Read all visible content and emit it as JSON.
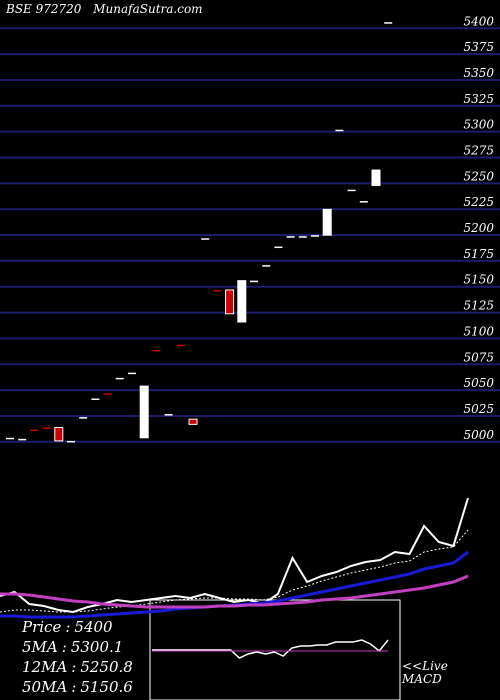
{
  "header": {
    "exchange": "BSE 972720",
    "site": "MunafaSutra.com"
  },
  "legend": {
    "price_label": "Price",
    "price_value": "5400",
    "ma5_label": "5MA",
    "ma5_value": "5300.1",
    "ma12_label": "12MA",
    "ma12_value": "5250.8",
    "ma50_label": "50MA",
    "ma50_value": "5150.6"
  },
  "macd_label": {
    "line1": "<<Live",
    "line2": "MACD"
  },
  "colors": {
    "background": "#000000",
    "grid": "#1c1c6e",
    "up": "#ffffff",
    "down": "#cc0000",
    "ma_fast": "#ffffff",
    "ma_mid": "#1a1ad6",
    "ma_slow": "#c040c0"
  },
  "chart_data": [
    {
      "type": "candlestick",
      "title": "",
      "ylim": [
        4994,
        5408
      ],
      "y_ticks": [
        5400,
        5375,
        5350,
        5325,
        5300,
        5275,
        5250,
        5225,
        5200,
        5175,
        5150,
        5125,
        5100,
        5075,
        5050,
        5025,
        5000
      ],
      "candles": [
        {
          "o": 5000,
          "c": 5000,
          "dir": "up"
        },
        {
          "o": 4999,
          "c": 4999,
          "dir": "up"
        },
        {
          "o": 5008,
          "c": 5008,
          "dir": "down"
        },
        {
          "o": 5010,
          "c": 5010,
          "dir": "down"
        },
        {
          "o": 5010,
          "c": 4997,
          "dir": "down"
        },
        {
          "o": 4997,
          "c": 4997,
          "dir": "up"
        },
        {
          "o": 5020,
          "c": 5020,
          "dir": "up"
        },
        {
          "o": 5038,
          "c": 5038,
          "dir": "up"
        },
        {
          "o": 5043,
          "c": 5043,
          "dir": "down"
        },
        {
          "o": 5058,
          "c": 5058,
          "dir": "up"
        },
        {
          "o": 5063,
          "c": 5063,
          "dir": "up"
        },
        {
          "o": 5000,
          "c": 5050,
          "dir": "up"
        },
        {
          "o": 5085,
          "c": 5085,
          "dir": "down"
        },
        {
          "o": 5023,
          "c": 5023,
          "dir": "up"
        },
        {
          "o": 5090,
          "c": 5090,
          "dir": "down"
        },
        {
          "o": 5018,
          "c": 5013,
          "dir": "down"
        },
        {
          "o": 5193,
          "c": 5193,
          "dir": "up"
        },
        {
          "o": 5143,
          "c": 5143,
          "dir": "down"
        },
        {
          "o": 5143,
          "c": 5120,
          "dir": "down"
        },
        {
          "o": 5112,
          "c": 5152,
          "dir": "up"
        },
        {
          "o": 5152,
          "c": 5152,
          "dir": "up"
        },
        {
          "o": 5167,
          "c": 5167,
          "dir": "up"
        },
        {
          "o": 5185,
          "c": 5185,
          "dir": "up"
        },
        {
          "o": 5195,
          "c": 5195,
          "dir": "up"
        },
        {
          "o": 5195,
          "c": 5195,
          "dir": "up"
        },
        {
          "o": 5196,
          "c": 5196,
          "dir": "up"
        },
        {
          "o": 5196,
          "c": 5221,
          "dir": "up"
        },
        {
          "o": 5298,
          "c": 5298,
          "dir": "up"
        },
        {
          "o": 5240,
          "c": 5240,
          "dir": "up"
        },
        {
          "o": 5229,
          "c": 5229,
          "dir": "up"
        },
        {
          "o": 5244,
          "c": 5259,
          "dir": "up"
        },
        {
          "o": 5402,
          "c": 5402,
          "dir": "up"
        }
      ]
    },
    {
      "type": "line",
      "title": "",
      "series": [
        {
          "role": "price",
          "values": [
            596,
            592,
            604,
            606,
            610,
            612,
            607,
            604,
            600,
            602,
            600,
            598,
            596,
            598,
            594,
            598,
            602,
            600,
            604,
            594,
            558,
            582,
            576,
            572,
            566,
            562,
            560,
            552,
            554,
            526,
            542,
            546,
            498
          ]
        },
        {
          "role": "ma_fast",
          "values": [
            612,
            610,
            610,
            611,
            612,
            612,
            611,
            609,
            607,
            606,
            604,
            602,
            600,
            599,
            598,
            598,
            599,
            599,
            600,
            597,
            590,
            586,
            581,
            577,
            573,
            570,
            567,
            563,
            561,
            552,
            549,
            547,
            530
          ]
        },
        {
          "role": "ma_mid",
          "values": [
            616,
            616,
            617,
            617,
            617,
            617,
            616,
            615,
            614,
            613,
            612,
            611,
            609,
            608,
            607,
            606,
            605,
            604,
            603,
            601,
            598,
            595,
            592,
            589,
            586,
            583,
            580,
            577,
            574,
            569,
            566,
            563,
            552
          ]
        },
        {
          "role": "ma_slow",
          "values": [
            594,
            594,
            595,
            597,
            599,
            601,
            602,
            604,
            605,
            606,
            607,
            607,
            607,
            607,
            607,
            606,
            606,
            605,
            605,
            604,
            603,
            602,
            600,
            599,
            598,
            596,
            594,
            592,
            590,
            588,
            585,
            582,
            576
          ]
        }
      ]
    },
    {
      "type": "line",
      "title": "",
      "series": [
        {
          "role": "macd",
          "values": [
            650,
            650,
            650,
            650,
            650,
            650,
            650,
            650,
            650,
            650,
            658,
            654,
            652,
            654,
            652,
            656,
            648,
            646,
            646,
            645,
            645,
            642,
            642,
            642,
            640,
            644,
            651,
            640
          ]
        },
        {
          "role": "signal",
          "values": [
            651,
            651,
            651,
            651,
            651,
            651,
            651,
            651,
            651,
            651,
            651,
            651,
            651,
            651,
            651,
            651,
            651,
            651,
            651,
            651,
            651,
            651,
            651,
            651,
            651,
            651,
            651,
            651
          ]
        }
      ]
    }
  ]
}
